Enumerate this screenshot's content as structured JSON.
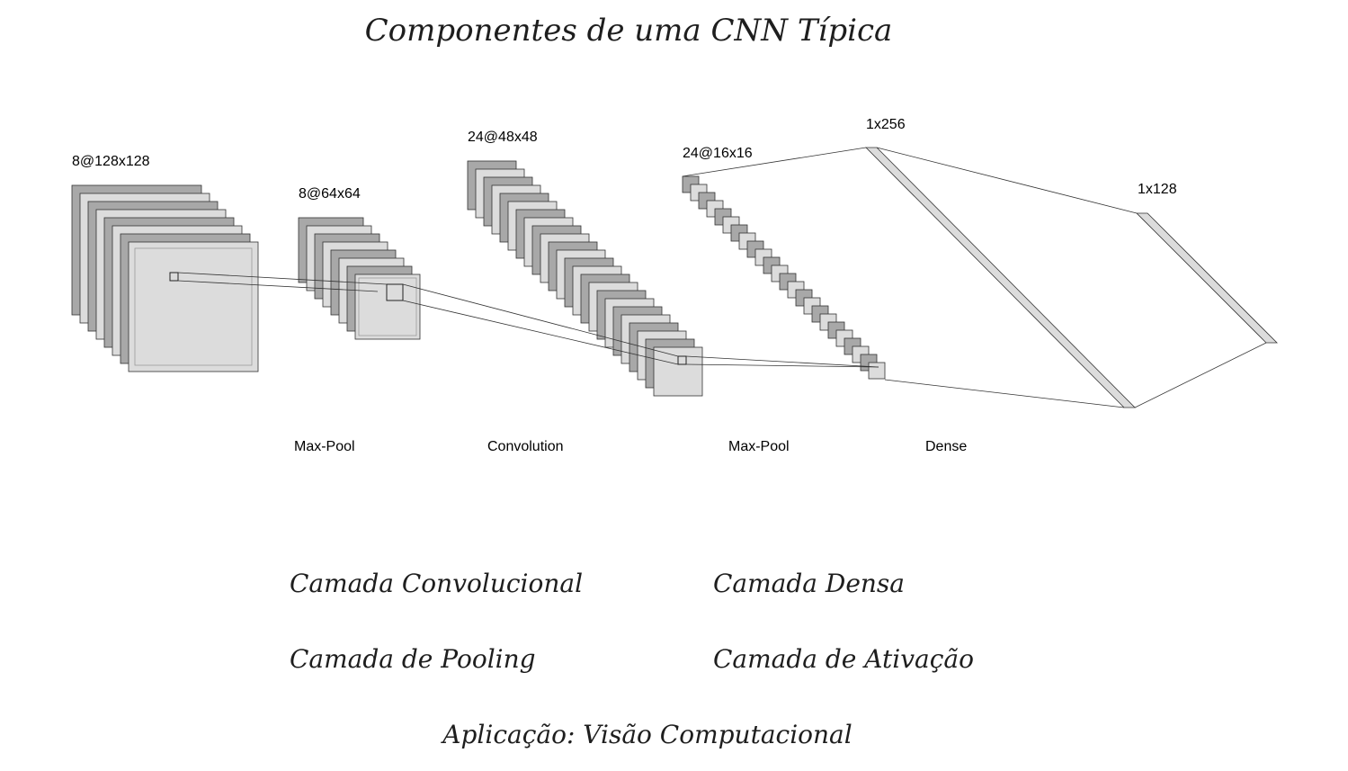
{
  "title": "Componentes de uma CNN Típica",
  "diagram": {
    "layers": [
      {
        "id": "input",
        "shape": "8@128x128"
      },
      {
        "id": "pool1",
        "shape": "8@64x64"
      },
      {
        "id": "conv",
        "shape": "24@48x48"
      },
      {
        "id": "pool2",
        "shape": "24@16x16"
      },
      {
        "id": "dense1",
        "shape": "1x256"
      },
      {
        "id": "dense2",
        "shape": "1x128"
      }
    ],
    "operations": [
      "Max-Pool",
      "Convolution",
      "Max-Pool",
      "Dense"
    ],
    "colors": {
      "dark_fill": "#a8a8a8",
      "light_fill": "#dcdcdc",
      "stroke": "#333333"
    }
  },
  "components": {
    "conv_layer": "Camada Convolucional",
    "dense_layer": "Camada Densa",
    "pooling_layer": "Camada de Pooling",
    "activation_layer": "Camada de Ativação"
  },
  "application": "Aplicação: Visão Computacional"
}
